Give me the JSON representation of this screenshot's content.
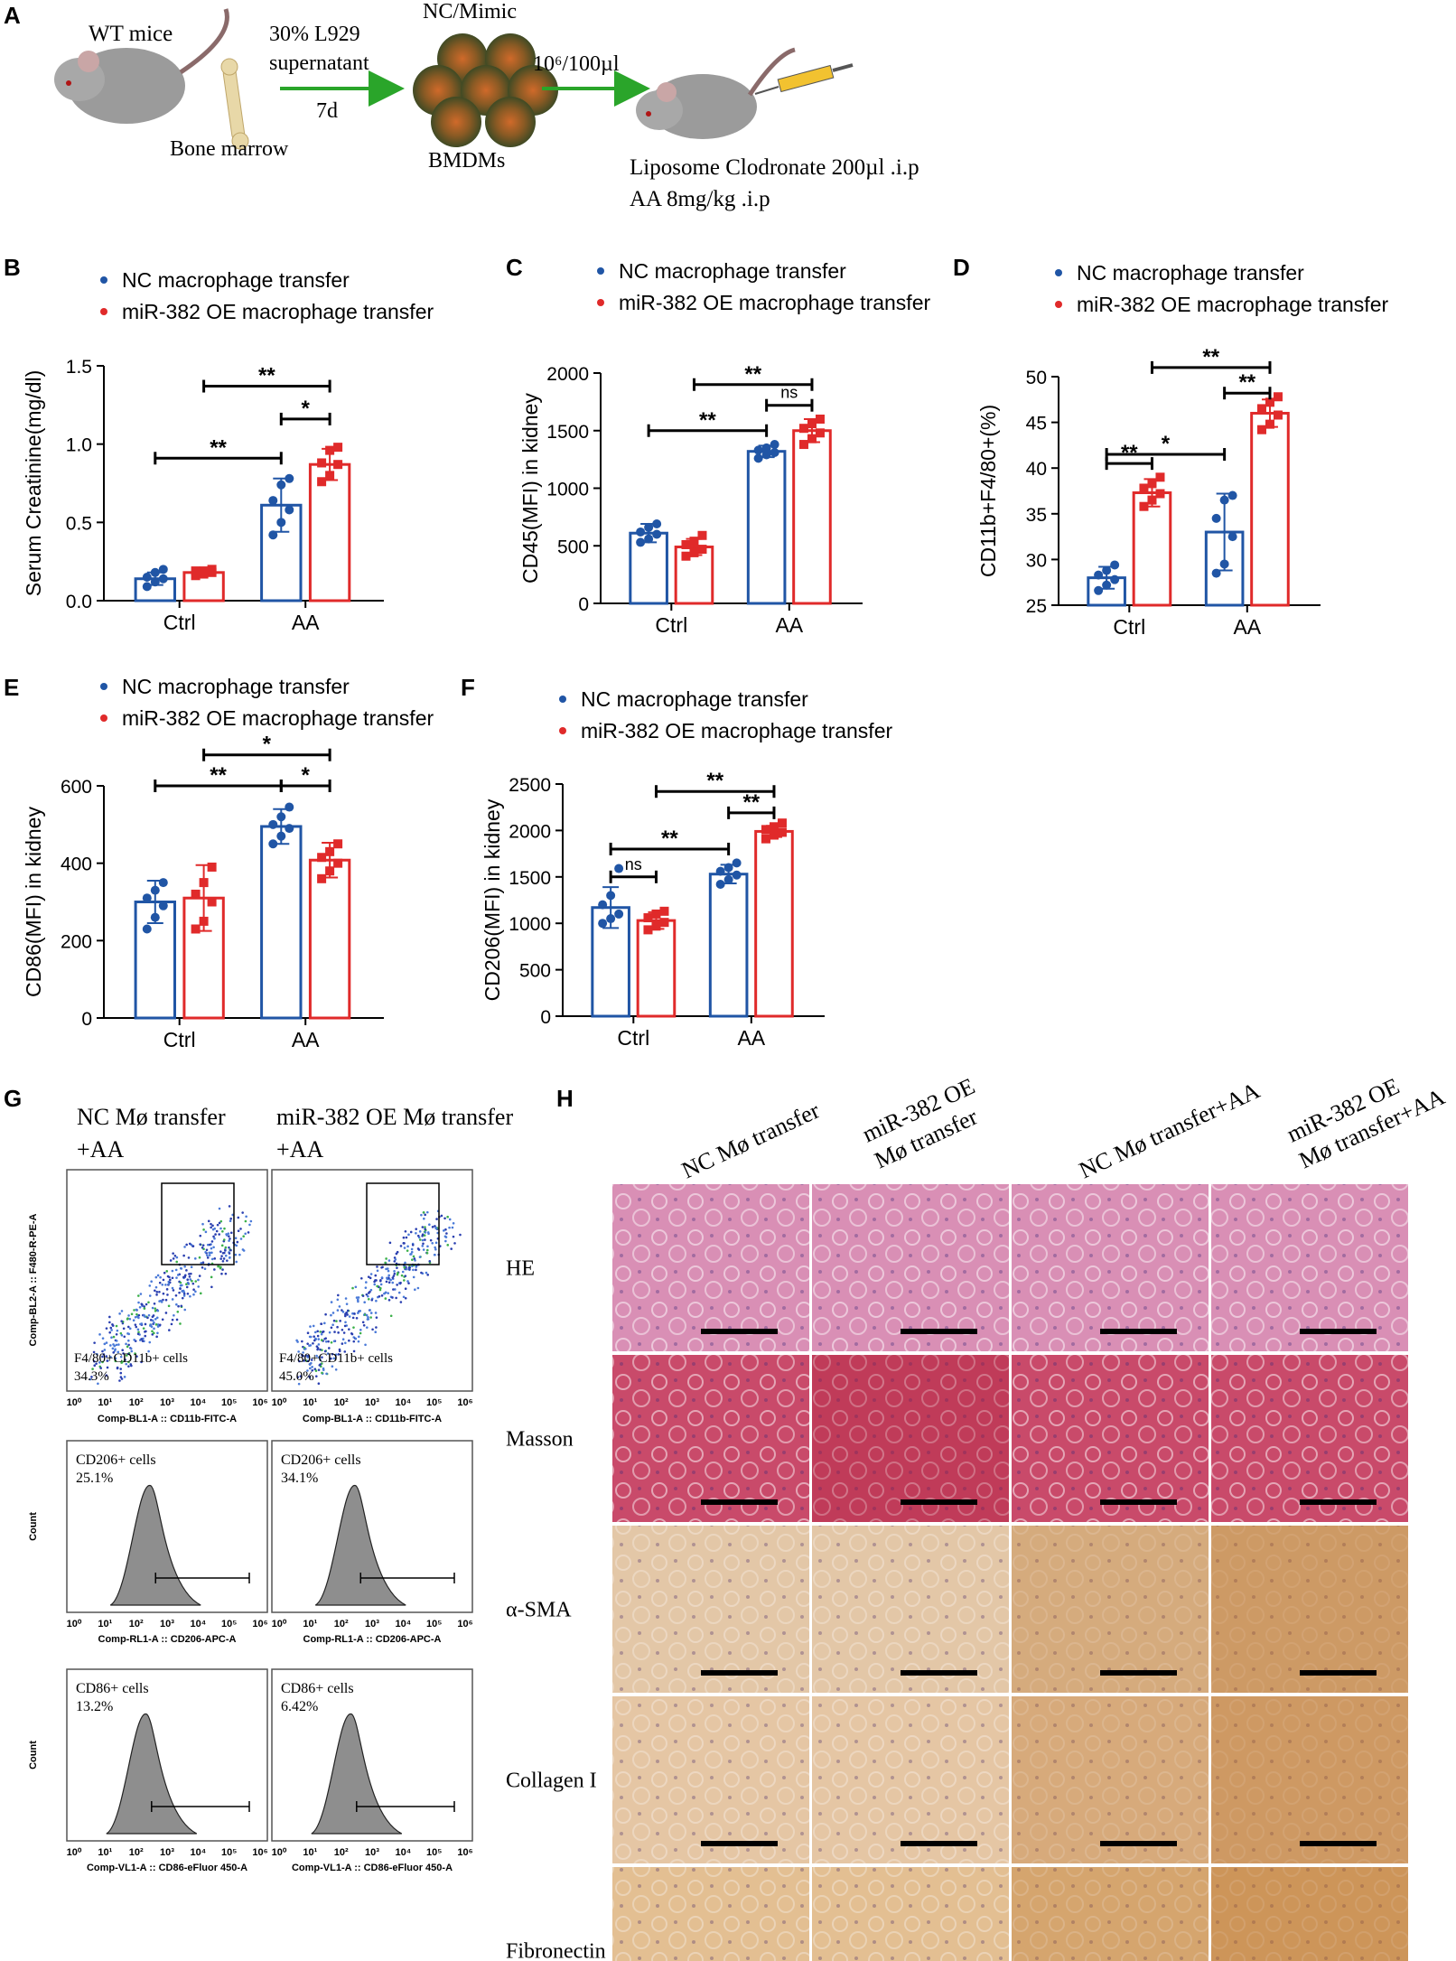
{
  "panel_letters": {
    "A": "A",
    "B": "B",
    "C": "C",
    "D": "D",
    "E": "E",
    "F": "F",
    "G": "G",
    "H": "H"
  },
  "schematic": {
    "wt_mice": "WT mice",
    "bone_marrow": "Bone marrow",
    "l929_line1": "30% L929",
    "l929_line2": "supernatant",
    "days": "7d",
    "nc_mimic": "NC/Mimic",
    "bmdms": "BMDMs",
    "dose": "10⁶/100µl",
    "treat_line1": "Liposome Clodronate 200µl .i.p",
    "treat_line2": "AA 8mg/kg .i.p"
  },
  "legend": {
    "nc": "NC macrophage transfer",
    "oe": "miR-382 OE macrophage transfer"
  },
  "colors": {
    "nc": "#2055a5",
    "oe": "#e02a2a"
  },
  "categories": [
    "Ctrl",
    "AA"
  ],
  "chart_data": [
    {
      "id": "B",
      "type": "bar",
      "ylabel": "Serum Creatinine(mg/dl)",
      "ylim": [
        0,
        1.5
      ],
      "ticks": [
        "0.0",
        "0.5",
        "1.0",
        "1.5"
      ],
      "tickvals": [
        0,
        0.5,
        1.0,
        1.5
      ],
      "series": [
        {
          "name": "NC macrophage transfer",
          "values": [
            0.14,
            0.61
          ],
          "err": [
            0.04,
            0.17
          ],
          "points": [
            [
              0.09,
              0.12,
              0.14,
              0.15,
              0.18,
              0.2
            ],
            [
              0.42,
              0.5,
              0.58,
              0.64,
              0.74,
              0.78
            ]
          ]
        },
        {
          "name": "miR-382 OE macrophage transfer",
          "values": [
            0.18,
            0.87
          ],
          "err": [
            0.02,
            0.1
          ],
          "points": [
            [
              0.16,
              0.17,
              0.18,
              0.19,
              0.19,
              0.2
            ],
            [
              0.76,
              0.8,
              0.87,
              0.88,
              0.96,
              0.98
            ]
          ]
        }
      ],
      "brackets": [
        {
          "a": [
            0,
            0
          ],
          "b": [
            1,
            0
          ],
          "y": 0.91,
          "label": "**"
        },
        {
          "a": [
            1,
            0
          ],
          "b": [
            1,
            1
          ],
          "y": 1.16,
          "label": "*"
        },
        {
          "a": [
            0,
            1
          ],
          "b": [
            1,
            1
          ],
          "y": 1.37,
          "label": "**"
        }
      ]
    },
    {
      "id": "C",
      "type": "bar",
      "ylabel": "CD45(MFI) in kidney",
      "ylim": [
        0,
        2000
      ],
      "ticks": [
        "0",
        "500",
        "1000",
        "1500",
        "2000"
      ],
      "tickvals": [
        0,
        500,
        1000,
        1500,
        2000
      ],
      "series": [
        {
          "name": "NC macrophage transfer",
          "values": [
            610,
            1320
          ],
          "err": [
            80,
            50
          ],
          "points": [
            [
              530,
              560,
              600,
              620,
              660,
              690
            ],
            [
              1260,
              1290,
              1310,
              1330,
              1350,
              1380
            ]
          ]
        },
        {
          "name": "miR-382 OE macrophage transfer",
          "values": [
            490,
            1500
          ],
          "err": [
            70,
            100
          ],
          "points": [
            [
              410,
              440,
              470,
              510,
              540,
              590
            ],
            [
              1380,
              1430,
              1480,
              1520,
              1560,
              1600
            ]
          ]
        }
      ],
      "brackets": [
        {
          "a": [
            0,
            0
          ],
          "b": [
            1,
            0
          ],
          "y": 1500,
          "label": "**"
        },
        {
          "a": [
            1,
            0
          ],
          "b": [
            1,
            1
          ],
          "y": 1720,
          "label": "ns"
        },
        {
          "a": [
            0,
            1
          ],
          "b": [
            1,
            1
          ],
          "y": 1900,
          "label": "**"
        }
      ]
    },
    {
      "id": "D",
      "type": "bar",
      "ylabel": "CD11b+F4/80+(%)",
      "ylim": [
        25,
        50
      ],
      "ticks": [
        "25",
        "30",
        "35",
        "40",
        "45",
        "50"
      ],
      "tickvals": [
        25,
        30,
        35,
        40,
        45,
        50
      ],
      "series": [
        {
          "name": "NC macrophage transfer",
          "values": [
            28,
            33
          ],
          "err": [
            1.2,
            4.2
          ],
          "points": [
            [
              26.6,
              27.2,
              27.8,
              28.3,
              28.8,
              29.4
            ],
            [
              28.5,
              29.5,
              32.5,
              34.5,
              36.5,
              37.0
            ]
          ]
        },
        {
          "name": "miR-382 OE macrophage transfer",
          "values": [
            37.3,
            46
          ],
          "err": [
            1.5,
            1.5
          ],
          "points": [
            [
              35.8,
              36.5,
              37.2,
              37.8,
              38.3,
              39.0
            ],
            [
              44.2,
              44.8,
              45.8,
              46.5,
              47.2,
              47.8
            ]
          ]
        }
      ],
      "brackets": [
        {
          "a": [
            0,
            0
          ],
          "b": [
            0,
            1
          ],
          "y": 40.5,
          "label": "**"
        },
        {
          "a": [
            0,
            0
          ],
          "b": [
            1,
            0
          ],
          "y": 41.5,
          "label": "*"
        },
        {
          "a": [
            1,
            0
          ],
          "b": [
            1,
            1
          ],
          "y": 48.2,
          "label": "**"
        },
        {
          "a": [
            0,
            1
          ],
          "b": [
            1,
            1
          ],
          "y": 51,
          "label": "**"
        }
      ]
    },
    {
      "id": "E",
      "type": "bar",
      "ylabel": "CD86(MFI) in kidney",
      "ylim": [
        0,
        600
      ],
      "ticks": [
        "0",
        "200",
        "400",
        "600"
      ],
      "tickvals": [
        0,
        200,
        400,
        600
      ],
      "series": [
        {
          "name": "NC macrophage transfer",
          "values": [
            300,
            495
          ],
          "err": [
            55,
            45
          ],
          "points": [
            [
              230,
              260,
              290,
              310,
              330,
              350
            ],
            [
              450,
              470,
              490,
              500,
              520,
              545
            ]
          ]
        },
        {
          "name": "miR-382 OE macrophage transfer",
          "values": [
            310,
            408
          ],
          "err": [
            85,
            45
          ],
          "points": [
            [
              230,
              250,
              300,
              320,
              350,
              390
            ],
            [
              360,
              380,
              400,
              415,
              430,
              450
            ]
          ]
        }
      ],
      "brackets": [
        {
          "a": [
            0,
            0
          ],
          "b": [
            1,
            0
          ],
          "y": 600,
          "label": "**"
        },
        {
          "a": [
            1,
            0
          ],
          "b": [
            1,
            1
          ],
          "y": 600,
          "label": "*"
        },
        {
          "a": [
            0,
            1
          ],
          "b": [
            1,
            1
          ],
          "y": 680,
          "label": "*"
        }
      ]
    },
    {
      "id": "F",
      "type": "bar",
      "ylabel": "CD206(MFI) in kidney",
      "ylim": [
        0,
        2500
      ],
      "ticks": [
        "0",
        "500",
        "1000",
        "1500",
        "2000",
        "2500"
      ],
      "tickvals": [
        0,
        500,
        1000,
        1500,
        2000,
        2500
      ],
      "series": [
        {
          "name": "NC macrophage transfer",
          "values": [
            1170,
            1530
          ],
          "err": [
            220,
            100
          ],
          "points": [
            [
              1000,
              1050,
              1100,
              1200,
              1300,
              1590
            ],
            [
              1420,
              1470,
              1520,
              1560,
              1600,
              1650
            ]
          ]
        },
        {
          "name": "miR-382 OE macrophage transfer",
          "values": [
            1030,
            1990
          ],
          "err": [
            90,
            60
          ],
          "points": [
            [
              930,
              970,
              1010,
              1060,
              1100,
              1130
            ],
            [
              1910,
              1950,
              1980,
              2010,
              2040,
              2080
            ]
          ]
        }
      ],
      "brackets": [
        {
          "a": [
            0,
            0
          ],
          "b": [
            0,
            1
          ],
          "y": 1500,
          "label": "ns"
        },
        {
          "a": [
            0,
            0
          ],
          "b": [
            1,
            0
          ],
          "y": 1800,
          "label": "**"
        },
        {
          "a": [
            1,
            0
          ],
          "b": [
            1,
            1
          ],
          "y": 2190,
          "label": "**"
        },
        {
          "a": [
            0,
            1
          ],
          "b": [
            1,
            1
          ],
          "y": 2420,
          "label": "**"
        }
      ]
    }
  ],
  "flow": {
    "col1_title_line1": "NC Mø transfer",
    "col1_title_line2": "+AA",
    "col2_title_line1": "miR-382 OE Mø transfer",
    "col2_title_line2": "+AA",
    "scatter_ylabel": "Comp-BL2-A :: F480-R-PE-A",
    "scatter_xlabel": "Comp-BL1-A :: CD11b-FITC-A",
    "scatter_gate_label": "F4/80+CD11b+ cells",
    "scatter_pct": [
      "34.3%",
      "45.0%"
    ],
    "cd206_label": "CD206+ cells",
    "cd206_pct": [
      "25.1%",
      "34.1%"
    ],
    "cd206_xlabel": "Comp-RL1-A :: CD206-APC-A",
    "cd86_label": "CD86+ cells",
    "cd86_pct": [
      "13.2%",
      "6.42%"
    ],
    "cd86_xlabel": "Comp-VL1-A :: CD86-eFluor   450-A",
    "count_label": "Count"
  },
  "histology": {
    "columns": [
      "NC Mø transfer",
      "miR-382 OE Mø transfer",
      "NC Mø transfer+AA",
      "miR-382 OE Mø transfer+AA"
    ],
    "rows": [
      "HE",
      "Masson",
      "α-SMA",
      "Collagen I",
      "Fibronectin"
    ],
    "row_colors": [
      "#d98fb5",
      "#c94a6a",
      "#ecd9c0",
      "#eed8bd",
      "#ebcfa7"
    ]
  }
}
